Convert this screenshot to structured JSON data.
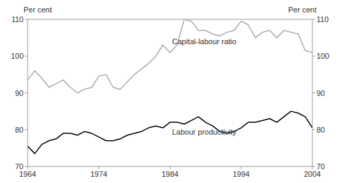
{
  "chart_data": {
    "type": "line",
    "x": [
      1964,
      1965,
      1966,
      1967,
      1968,
      1969,
      1970,
      1971,
      1972,
      1973,
      1974,
      1975,
      1976,
      1977,
      1978,
      1979,
      1980,
      1981,
      1982,
      1983,
      1984,
      1985,
      1986,
      1987,
      1988,
      1989,
      1990,
      1991,
      1992,
      1993,
      1994,
      1995,
      1996,
      1997,
      1998,
      1999,
      2000,
      2001,
      2002,
      2003,
      2004
    ],
    "series": [
      {
        "name": "Capital-labour ratio",
        "color": "#aaaaaa",
        "values": [
          93.5,
          96.0,
          94.0,
          91.5,
          92.5,
          93.5,
          91.5,
          90.0,
          91.0,
          91.5,
          94.5,
          95.0,
          91.5,
          91.0,
          93.0,
          95.0,
          96.5,
          98.0,
          100.0,
          103.0,
          101.0,
          103.0,
          110.0,
          109.5,
          107.0,
          107.0,
          106.0,
          105.5,
          106.5,
          107.0,
          109.5,
          108.5,
          105.0,
          106.5,
          107.0,
          105.0,
          107.0,
          106.5,
          106.0,
          101.5,
          101.0
        ]
      },
      {
        "name": "Labour productivity",
        "color": "#000000",
        "values": [
          75.5,
          73.5,
          76.0,
          77.0,
          77.5,
          79.0,
          79.0,
          78.5,
          79.5,
          79.0,
          78.0,
          77.0,
          77.0,
          77.5,
          78.5,
          79.0,
          79.5,
          80.5,
          81.0,
          80.5,
          82.0,
          82.0,
          81.5,
          82.5,
          83.5,
          82.0,
          81.0,
          79.5,
          79.0,
          79.5,
          80.5,
          82.0,
          82.0,
          82.5,
          83.0,
          82.0,
          83.5,
          85.0,
          84.5,
          83.5,
          80.5
        ]
      }
    ],
    "xlim": [
      1964,
      2004
    ],
    "xticks": [
      1964,
      1974,
      1984,
      1994,
      2004
    ],
    "ylim": [
      70,
      110
    ],
    "yticks": [
      70,
      80,
      90,
      100,
      110
    ],
    "y2lim": [
      70,
      110
    ],
    "y2ticks": [
      70,
      80,
      90,
      100,
      110
    ],
    "y_label": "Per cent",
    "y2_label": "Per cent",
    "grid": false
  }
}
